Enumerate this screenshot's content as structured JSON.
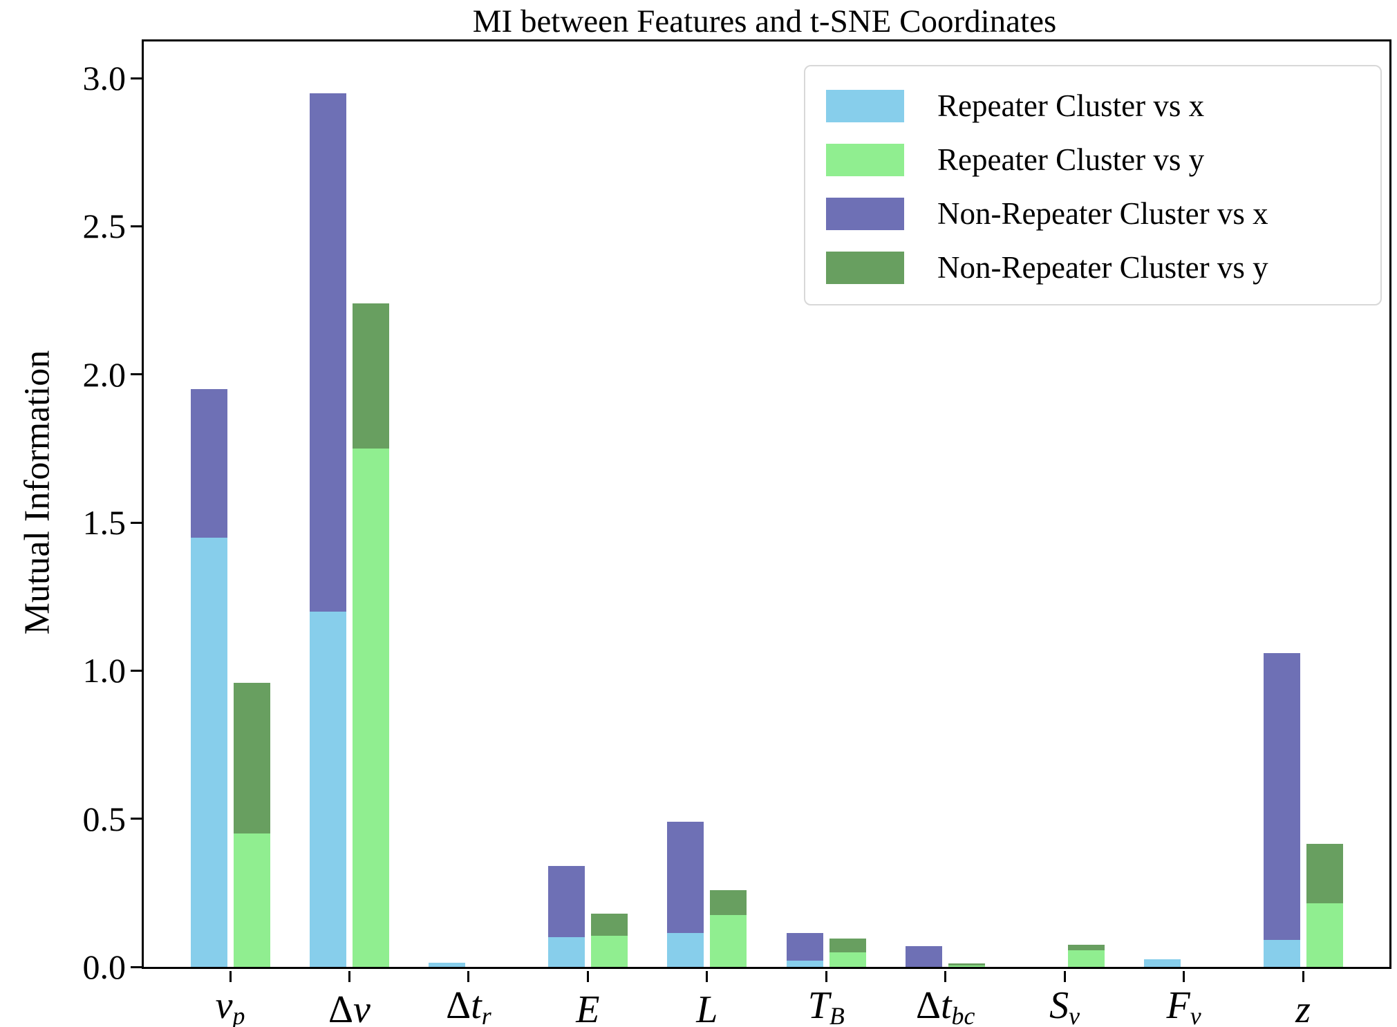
{
  "title": "MI between Features and t-SNE Coordinates",
  "y_axis": {
    "label": "Mutual Information",
    "tick_values": [
      0.0,
      0.5,
      1.0,
      1.5,
      2.0,
      2.5,
      3.0
    ]
  },
  "chart_data": {
    "type": "bar",
    "stacked": true,
    "title": "MI between Features and t-SNE Coordinates",
    "xlabel": "",
    "ylabel": "Mutual Information",
    "ylim": [
      0,
      3.124
    ],
    "yticks": [
      0.0,
      0.5,
      1.0,
      1.5,
      2.0,
      2.5,
      3.0
    ],
    "grid": false,
    "legend_position": "upper right",
    "categories": [
      "nu_p",
      "delta_nu",
      "delta_t_r",
      "E",
      "L",
      "T_B",
      "delta_t_bc",
      "S_nu",
      "F_nu",
      "z"
    ],
    "category_labels": [
      {
        "pre": "",
        "it": "ν",
        "sub": "p"
      },
      {
        "pre": "Δ",
        "it": "ν",
        "sub": ""
      },
      {
        "pre": "Δ",
        "it": "t",
        "sub": "r"
      },
      {
        "pre": "",
        "it": "E",
        "sub": ""
      },
      {
        "pre": "",
        "it": "L",
        "sub": ""
      },
      {
        "pre": "",
        "it": "T",
        "sub": "B"
      },
      {
        "pre": "Δ",
        "it": "t",
        "sub": "bc"
      },
      {
        "pre": "",
        "it": "S",
        "sub": "ν"
      },
      {
        "pre": "",
        "it": "F",
        "sub": "ν"
      },
      {
        "pre": "",
        "it": "z",
        "sub": ""
      }
    ],
    "bar_groups": [
      {
        "id": "vs_x",
        "segments": [
          {
            "series": "Repeater Cluster vs x",
            "color": "#87CEEB",
            "values": [
              1.45,
              1.2,
              0.015,
              0.1,
              0.115,
              0.02,
              0.0,
              0.0,
              0.026,
              0.09
            ]
          },
          {
            "series": "Non-Repeater Cluster vs x",
            "color": "#6E70B5",
            "values": [
              0.5,
              1.75,
              0.0,
              0.24,
              0.375,
              0.095,
              0.07,
              0.0,
              0.0,
              0.97
            ]
          }
        ]
      },
      {
        "id": "vs_y",
        "segments": [
          {
            "series": "Repeater Cluster vs y",
            "color": "#90EE90",
            "values": [
              0.45,
              1.75,
              0.0,
              0.105,
              0.175,
              0.05,
              0.005,
              0.055,
              0.0,
              0.215
            ]
          },
          {
            "series": "Non-Repeater Cluster vs y",
            "color": "#689F60",
            "values": [
              0.51,
              0.49,
              0.0,
              0.075,
              0.085,
              0.045,
              0.007,
              0.02,
              0.0,
              0.2
            ]
          }
        ]
      }
    ],
    "stacked_totals": {
      "repeater_vs_x_total": [
        1.45,
        1.2,
        0.015,
        0.1,
        0.115,
        0.02,
        0.0,
        0.0,
        0.026,
        0.09
      ],
      "nonrepeater_vs_x_top": [
        1.95,
        2.95,
        0.015,
        0.34,
        0.49,
        0.115,
        0.07,
        0.0,
        0.026,
        1.06
      ],
      "repeater_vs_y_total": [
        0.45,
        1.75,
        0.0,
        0.105,
        0.175,
        0.05,
        0.005,
        0.055,
        0.0,
        0.215
      ],
      "nonrepeater_vs_y_top": [
        0.96,
        2.24,
        0.0,
        0.18,
        0.26,
        0.095,
        0.012,
        0.075,
        0.0,
        0.415
      ]
    },
    "legend": [
      {
        "label": "Repeater Cluster vs x",
        "color": "#87CEEB"
      },
      {
        "label": "Repeater Cluster vs y",
        "color": "#90EE90"
      },
      {
        "label": "Non-Repeater Cluster vs x",
        "color": "#6E70B5"
      },
      {
        "label": "Non-Repeater Cluster vs y",
        "color": "#689F60"
      }
    ]
  }
}
